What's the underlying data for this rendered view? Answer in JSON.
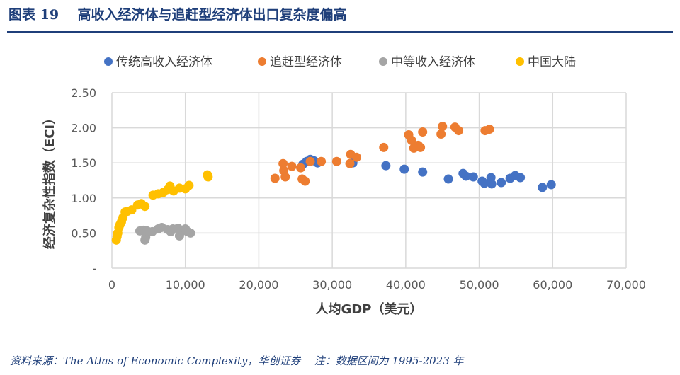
{
  "title": "图表 19    高收入经济体与追赶型经济体出口复杂度偏高",
  "source": "资料来源：The Atlas of Economic Complexity，华创证券    注：数据区间为 1995-2023 年",
  "chart_data": {
    "type": "scatter",
    "title": "",
    "xlabel": "人均GDP（美元）",
    "ylabel": "经济复杂性指数（ECI）",
    "xlim": [
      0,
      70000
    ],
    "ylim": [
      0,
      2.5
    ],
    "xticks": [
      0,
      10000,
      20000,
      30000,
      40000,
      50000,
      60000,
      70000
    ],
    "xtick_labels": [
      "0",
      "10,000",
      "20,000",
      "30,000",
      "40,000",
      "50,000",
      "60,000",
      "70,000"
    ],
    "yticks": [
      0,
      0.5,
      1,
      1.5,
      2,
      2.5
    ],
    "ytick_labels": [
      "-",
      "0.50",
      "1.00",
      "1.50",
      "2.00",
      "2.50"
    ],
    "grid": true,
    "legend_position": "top",
    "series": [
      {
        "name": "传统高收入经济体",
        "color": "#4472c4",
        "points": [
          [
            26000,
            1.48
          ],
          [
            26500,
            1.52
          ],
          [
            27000,
            1.55
          ],
          [
            27500,
            1.53
          ],
          [
            28000,
            1.5
          ],
          [
            32800,
            1.5
          ],
          [
            37300,
            1.46
          ],
          [
            39800,
            1.41
          ],
          [
            42300,
            1.37
          ],
          [
            45800,
            1.27
          ],
          [
            47800,
            1.35
          ],
          [
            48200,
            1.31
          ],
          [
            49200,
            1.3
          ],
          [
            50400,
            1.24
          ],
          [
            50700,
            1.21
          ],
          [
            51600,
            1.29
          ],
          [
            51700,
            1.2
          ],
          [
            53000,
            1.22
          ],
          [
            54200,
            1.28
          ],
          [
            54900,
            1.32
          ],
          [
            55600,
            1.29
          ],
          [
            58600,
            1.15
          ],
          [
            59800,
            1.19
          ]
        ]
      },
      {
        "name": "追赶型经济体",
        "color": "#ed7d31",
        "points": [
          [
            22200,
            1.28
          ],
          [
            23300,
            1.49
          ],
          [
            23400,
            1.39
          ],
          [
            23600,
            1.3
          ],
          [
            24500,
            1.45
          ],
          [
            25700,
            1.43
          ],
          [
            25900,
            1.27
          ],
          [
            26300,
            1.24
          ],
          [
            27000,
            1.52
          ],
          [
            28500,
            1.52
          ],
          [
            30600,
            1.52
          ],
          [
            32400,
            1.49
          ],
          [
            32500,
            1.62
          ],
          [
            33300,
            1.58
          ],
          [
            37000,
            1.72
          ],
          [
            40400,
            1.9
          ],
          [
            40800,
            1.82
          ],
          [
            41100,
            1.71
          ],
          [
            41700,
            1.75
          ],
          [
            42000,
            1.72
          ],
          [
            42300,
            1.94
          ],
          [
            44800,
            1.91
          ],
          [
            45000,
            2.02
          ],
          [
            46700,
            2.01
          ],
          [
            47200,
            1.96
          ],
          [
            50800,
            1.96
          ],
          [
            51400,
            1.98
          ]
        ]
      },
      {
        "name": "中等收入经济体",
        "color": "#a5a5a5",
        "points": [
          [
            3800,
            0.53
          ],
          [
            4300,
            0.54
          ],
          [
            4500,
            0.4
          ],
          [
            4600,
            0.44
          ],
          [
            4800,
            0.53
          ],
          [
            5500,
            0.52
          ],
          [
            6300,
            0.56
          ],
          [
            6800,
            0.58
          ],
          [
            7600,
            0.55
          ],
          [
            8000,
            0.52
          ],
          [
            8300,
            0.56
          ],
          [
            9000,
            0.57
          ],
          [
            9200,
            0.46
          ],
          [
            9600,
            0.53
          ],
          [
            10000,
            0.56
          ],
          [
            10300,
            0.52
          ],
          [
            10700,
            0.5
          ]
        ]
      },
      {
        "name": "中国大陆",
        "color": "#ffc000",
        "points": [
          [
            600,
            0.4
          ],
          [
            700,
            0.45
          ],
          [
            800,
            0.5
          ],
          [
            950,
            0.58
          ],
          [
            1100,
            0.62
          ],
          [
            1300,
            0.66
          ],
          [
            1500,
            0.72
          ],
          [
            1800,
            0.8
          ],
          [
            2100,
            0.81
          ],
          [
            2700,
            0.83
          ],
          [
            3500,
            0.9
          ],
          [
            4000,
            0.92
          ],
          [
            4500,
            0.88
          ],
          [
            5600,
            1.04
          ],
          [
            6300,
            1.06
          ],
          [
            7000,
            1.08
          ],
          [
            7600,
            1.12
          ],
          [
            7900,
            1.17
          ],
          [
            8400,
            1.1
          ],
          [
            9200,
            1.14
          ],
          [
            10000,
            1.13
          ],
          [
            10500,
            1.18
          ],
          [
            13000,
            1.33
          ],
          [
            13100,
            1.3
          ]
        ]
      }
    ]
  }
}
